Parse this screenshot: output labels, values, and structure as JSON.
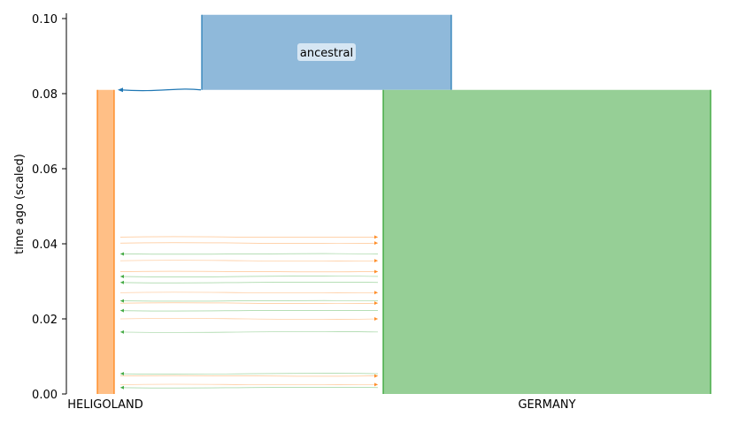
{
  "chart_data": {
    "type": "demography",
    "ylabel": "time ago (scaled)",
    "ylim": [
      0,
      0.101
    ],
    "yticks": [
      "0.00",
      "0.02",
      "0.04",
      "0.06",
      "0.08",
      "0.10"
    ],
    "ytick_values": [
      0,
      0.02,
      0.04,
      0.06,
      0.08,
      0.1
    ],
    "demes": [
      {
        "name": "ancestral",
        "label": "ancestral",
        "color": "#8fb9da",
        "edge": "#1f77b4",
        "start_time": 0.101,
        "end_time": 0.081,
        "x_label": ""
      },
      {
        "name": "HELIGOLAND",
        "label": "HELIGOLAND",
        "color": "#ffbf86",
        "edge": "#ff7f0e",
        "start_time": 0.081,
        "end_time": 0,
        "x_label": "HELIGOLAND"
      },
      {
        "name": "GERMANY",
        "label": "GERMANY",
        "color": "#96cf96",
        "edge": "#2ca02c",
        "start_time": 0.081,
        "end_time": 0,
        "x_label": "GERMANY"
      }
    ],
    "ancestry_arrow": {
      "from": "ancestral",
      "to": "HELIGOLAND",
      "time": 0.081,
      "color": "#1f77b4"
    },
    "migrations": [
      {
        "time": 0.0418,
        "source": "HELIGOLAND",
        "dest": "GERMANY",
        "color": "#ff7f0e"
      },
      {
        "time": 0.0402,
        "source": "HELIGOLAND",
        "dest": "GERMANY",
        "color": "#ff7f0e"
      },
      {
        "time": 0.0373,
        "source": "GERMANY",
        "dest": "HELIGOLAND",
        "color": "#2ca02c"
      },
      {
        "time": 0.0355,
        "source": "HELIGOLAND",
        "dest": "GERMANY",
        "color": "#ff7f0e"
      },
      {
        "time": 0.0326,
        "source": "HELIGOLAND",
        "dest": "GERMANY",
        "color": "#ff7f0e"
      },
      {
        "time": 0.0313,
        "source": "GERMANY",
        "dest": "HELIGOLAND",
        "color": "#2ca02c"
      },
      {
        "time": 0.0297,
        "source": "GERMANY",
        "dest": "HELIGOLAND",
        "color": "#2ca02c"
      },
      {
        "time": 0.027,
        "source": "HELIGOLAND",
        "dest": "GERMANY",
        "color": "#ff7f0e"
      },
      {
        "time": 0.0248,
        "source": "GERMANY",
        "dest": "HELIGOLAND",
        "color": "#2ca02c"
      },
      {
        "time": 0.0242,
        "source": "HELIGOLAND",
        "dest": "GERMANY",
        "color": "#ff7f0e"
      },
      {
        "time": 0.0222,
        "source": "GERMANY",
        "dest": "HELIGOLAND",
        "color": "#2ca02c"
      },
      {
        "time": 0.02,
        "source": "HELIGOLAND",
        "dest": "GERMANY",
        "color": "#ff7f0e"
      },
      {
        "time": 0.0165,
        "source": "GERMANY",
        "dest": "HELIGOLAND",
        "color": "#2ca02c"
      },
      {
        "time": 0.0054,
        "source": "GERMANY",
        "dest": "HELIGOLAND",
        "color": "#2ca02c"
      },
      {
        "time": 0.0048,
        "source": "HELIGOLAND",
        "dest": "GERMANY",
        "color": "#ff7f0e"
      },
      {
        "time": 0.0025,
        "source": "HELIGOLAND",
        "dest": "GERMANY",
        "color": "#ff7f0e"
      },
      {
        "time": 0.0017,
        "source": "GERMANY",
        "dest": "HELIGOLAND",
        "color": "#2ca02c"
      }
    ]
  }
}
